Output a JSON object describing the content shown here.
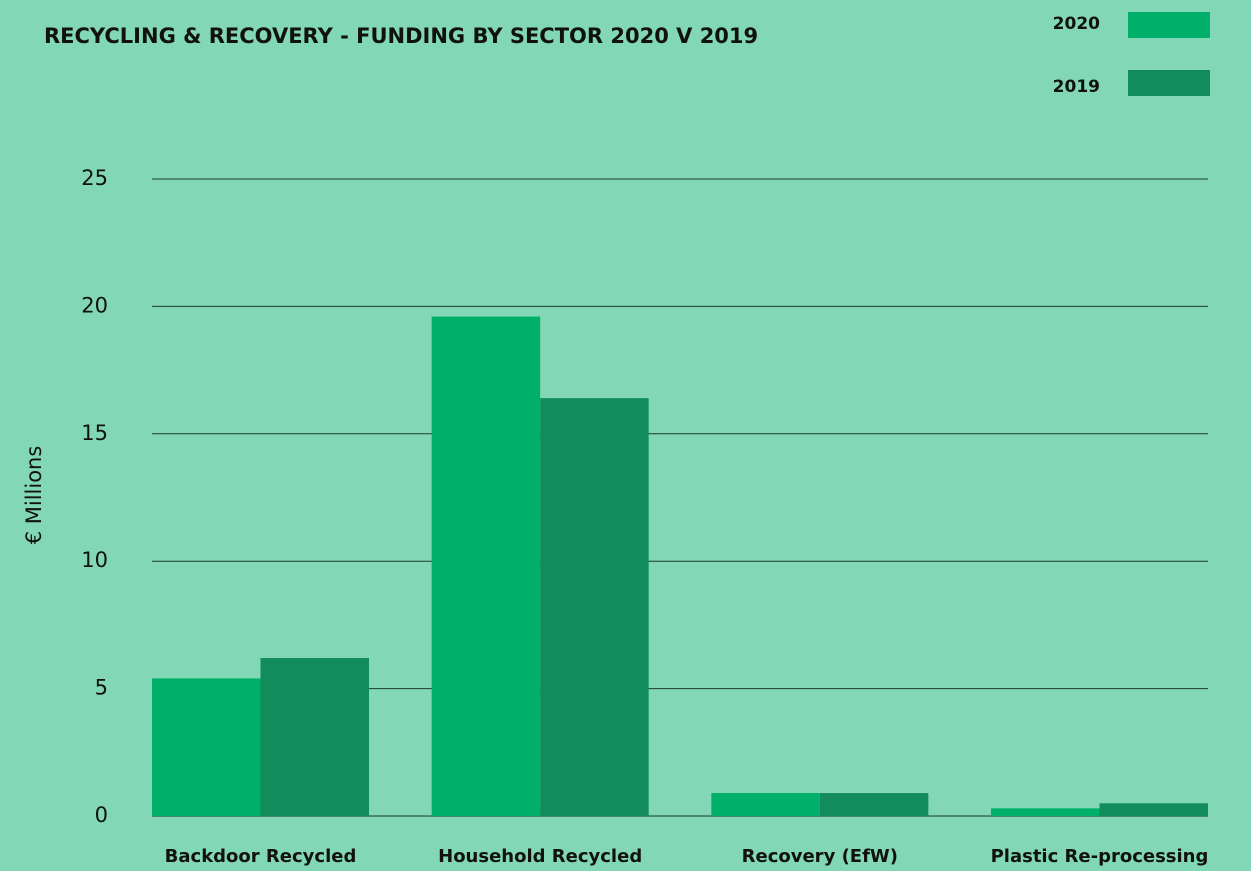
{
  "chart_data": {
    "type": "bar",
    "title": "RECYCLING & RECOVERY - FUNDING BY SECTOR 2020 V 2019",
    "y_label": "€ Millions",
    "categories": [
      "Backdoor Recycled",
      "Household Recycled",
      "Recovery (EfW)",
      "Plastic Re-processing"
    ],
    "series": [
      {
        "name": "2020",
        "color": "#00b06a",
        "values": [
          5.4,
          19.6,
          0.9,
          0.3
        ]
      },
      {
        "name": "2019",
        "color": "#118c5a",
        "values": [
          6.2,
          16.4,
          0.9,
          0.5
        ]
      }
    ],
    "ylim": [
      0,
      25
    ],
    "yticks": [
      0,
      5,
      10,
      15,
      20,
      25
    ],
    "grid": true,
    "legend": "top-right"
  }
}
